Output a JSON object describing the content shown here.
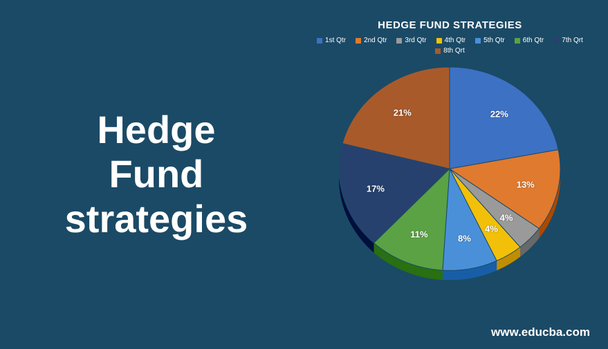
{
  "background_color": "#1b4a66",
  "main_title": {
    "text": "Hedge\nFund\nstrategies",
    "fontsize": 56,
    "color": "#ffffff",
    "weight": "bold"
  },
  "chart": {
    "type": "pie",
    "title": "HEDGE FUND STRATEGIES",
    "title_fontsize": 15,
    "title_color": "#ffffff",
    "legend_fontsize": 10,
    "label_fontsize": 13,
    "label_color": "#ffffff",
    "diameter": 320,
    "tilt": 0.92,
    "depth": 14,
    "start_angle_deg": -90,
    "slices": [
      {
        "label": "1st Qtr",
        "value": 22,
        "color": "#3d71c4"
      },
      {
        "label": "2nd Qtr",
        "value": 13,
        "color": "#e07a2f"
      },
      {
        "label": "3rd Qtr",
        "value": 4,
        "color": "#9a9a9a"
      },
      {
        "label": "4th Qtr",
        "value": 4,
        "color": "#f2c009"
      },
      {
        "label": "5th Qtr",
        "value": 8,
        "color": "#4a90d9"
      },
      {
        "label": "6th Qtr",
        "value": 11,
        "color": "#5aa244"
      },
      {
        "label": "7th Qrt",
        "value": 17,
        "color": "#27416e"
      },
      {
        "label": "8th Qrt",
        "value": 21,
        "color": "#a95a2b"
      }
    ]
  },
  "footer": {
    "text": "www.educba.com",
    "fontsize": 17,
    "color": "#ffffff"
  }
}
